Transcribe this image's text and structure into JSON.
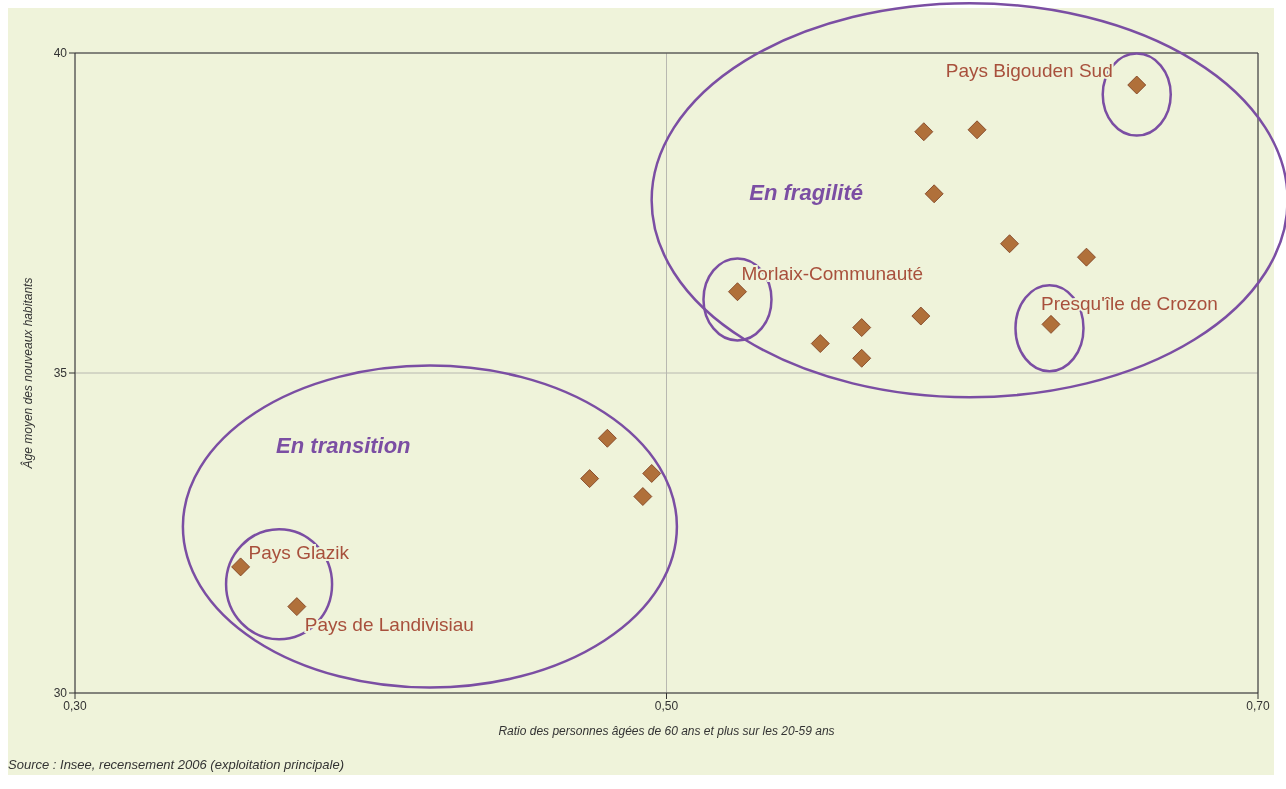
{
  "chart_data": {
    "type": "scatter",
    "xlabel": "Ratio des personnes âgées de 60 ans et plus sur les 20-59 ans",
    "ylabel": "Âge moyen des nouveaux habitants",
    "x": [
      0.587,
      0.605,
      0.5905,
      0.616,
      0.642,
      0.659,
      0.524,
      0.586,
      0.566,
      0.552,
      0.566,
      0.63,
      0.48,
      0.474,
      0.495,
      0.492,
      0.356,
      0.375
    ],
    "series": [
      {
        "color": "#b0703a",
        "values": [
          38.77,
          38.8,
          37.8,
          37.02,
          36.81,
          39.5,
          36.27,
          35.89,
          35.71,
          35.46,
          35.23,
          35.76,
          33.98,
          33.35,
          33.43,
          33.07,
          31.97,
          31.35
        ]
      }
    ],
    "marker": "diamond",
    "grid": true,
    "xlim": [
      0.3,
      0.7
    ],
    "xticks": [
      {
        "value": 0.3,
        "label": "0,30"
      },
      {
        "value": 0.5,
        "label": "0,50"
      },
      {
        "value": 0.7,
        "label": "0,70"
      }
    ],
    "ylim": [
      30,
      40
    ],
    "yticks": [
      30,
      35,
      40
    ],
    "annotations": [
      {
        "text": "Pays Bigouden Sud",
        "x": 0.659,
        "y": 39.5
      },
      {
        "text": "Morlaix-Communauté",
        "x": 0.524,
        "y": 36.27
      },
      {
        "text": "Presqu'île de Crozon",
        "x": 0.63,
        "y": 35.76
      },
      {
        "text": "Pays Glazik",
        "x": 0.356,
        "y": 31.97
      },
      {
        "text": "Pays de Landivisiau",
        "x": 0.375,
        "y": 31.35
      },
      "En fragilité",
      "En transition",
      "Source : Insee, recensement 2006 (exploitation principale)"
    ]
  }
}
